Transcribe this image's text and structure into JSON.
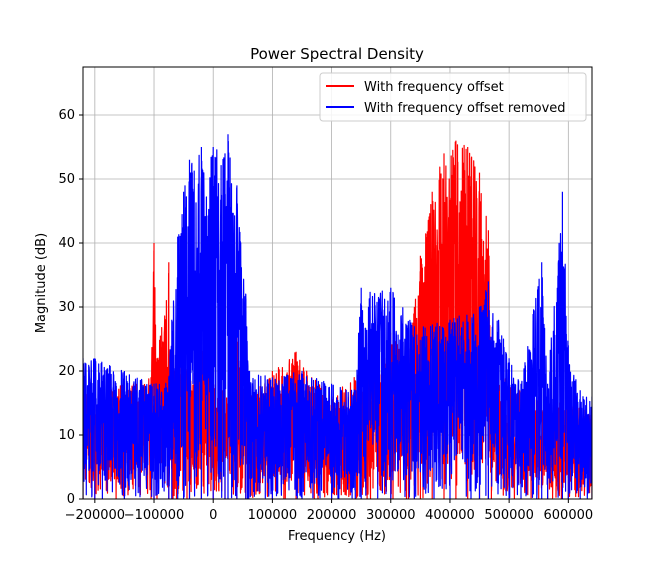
{
  "chart_data": {
    "type": "line",
    "title": "Power Spectral Density",
    "xlabel": "Frequency (Hz)",
    "ylabel": "Magnitude (dB)",
    "xlim": [
      -220000,
      640000
    ],
    "ylim": [
      0,
      67.5
    ],
    "xticks": [
      -200000,
      -100000,
      0,
      100000,
      200000,
      300000,
      400000,
      500000,
      600000
    ],
    "xtick_labels": [
      "−200000",
      "−100000",
      "0",
      "100000",
      "200000",
      "300000",
      "400000",
      "500000",
      "600000"
    ],
    "yticks": [
      0,
      10,
      20,
      30,
      40,
      50,
      60
    ],
    "ytick_labels": [
      "0",
      "10",
      "20",
      "30",
      "40",
      "50",
      "60"
    ],
    "grid": true,
    "legend_position": "top-right",
    "series": [
      {
        "name": "With frequency offset",
        "color": "#ff0000",
        "x": [
          -220000,
          -200000,
          -150000,
          -105000,
          -100000,
          -95000,
          -75000,
          -68000,
          -62000,
          -40000,
          -20000,
          0,
          20000,
          40000,
          55000,
          60000,
          100000,
          140000,
          200000,
          260000,
          300000,
          330000,
          340000,
          350000,
          370000,
          390000,
          410000,
          430000,
          450000,
          465000,
          470000,
          500000,
          550000,
          600000,
          640000
        ],
        "values": [
          17,
          16,
          18,
          19,
          40,
          22,
          37,
          20,
          28,
          20,
          27,
          18,
          17,
          27,
          15,
          16,
          20,
          23,
          16,
          21,
          26,
          22,
          30,
          38,
          48,
          54,
          56,
          55,
          51,
          42,
          22,
          18,
          16,
          15,
          14
        ]
      },
      {
        "name": "With frequency offset removed",
        "color": "#0000ff",
        "x": [
          -220000,
          -200000,
          -150000,
          -100000,
          -75000,
          -70000,
          -60000,
          -50000,
          -40000,
          -20000,
          0,
          20000,
          25000,
          40000,
          55000,
          60000,
          100000,
          150000,
          200000,
          240000,
          250000,
          300000,
          340000,
          400000,
          450000,
          465000,
          500000,
          520000,
          555000,
          565000,
          590000,
          600000,
          620000,
          640000
        ],
        "values": [
          22,
          22,
          20,
          18,
          19,
          28,
          41,
          48,
          53,
          55,
          55,
          54,
          57,
          49,
          32,
          20,
          19,
          20,
          18,
          17,
          33,
          33,
          27,
          28,
          30,
          34,
          22,
          18,
          37,
          18,
          48,
          24,
          17,
          16
        ]
      }
    ]
  }
}
